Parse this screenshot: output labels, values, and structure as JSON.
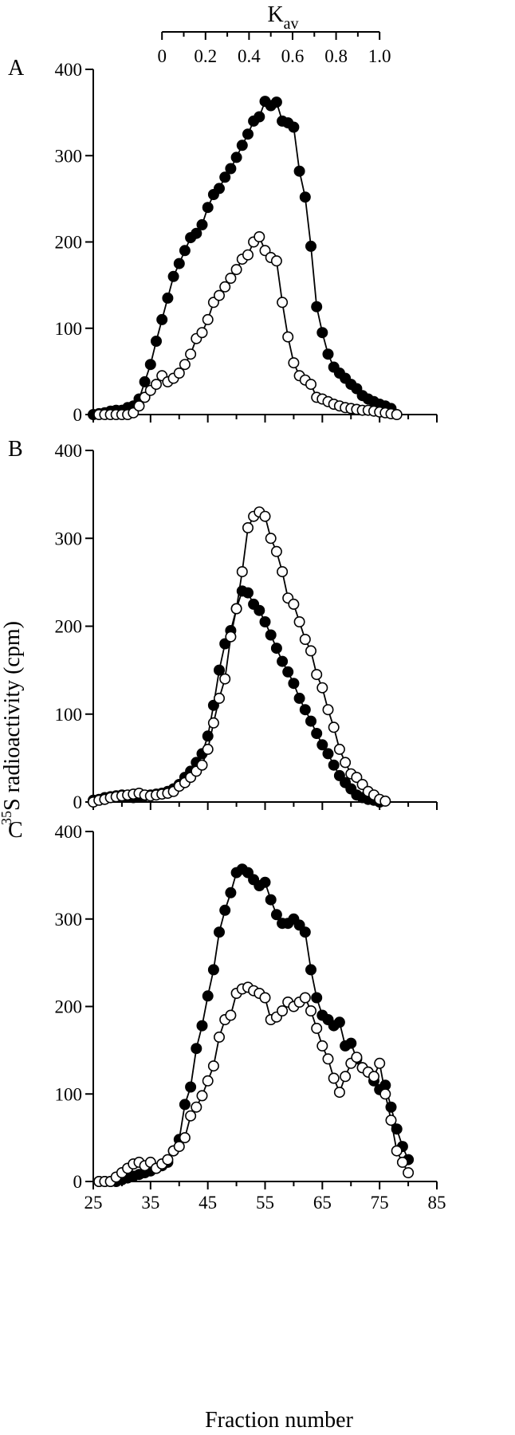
{
  "figure": {
    "top_axis_label_main": "K",
    "top_axis_label_sub": "av",
    "top_axis_ticks": [
      "0",
      "0.2",
      "0.4",
      "0.6",
      "0.8",
      "1.0"
    ],
    "top_axis_values": [
      0,
      0.2,
      0.4,
      0.6,
      0.8,
      1.0
    ],
    "y_axis_superscript": "35",
    "y_axis_label": "S radioactivity (cpm)",
    "x_axis_label": "Fraction number"
  },
  "chart_data": [
    {
      "type": "line",
      "panel": "A",
      "xlim": [
        25,
        85
      ],
      "ylim": [
        0,
        400
      ],
      "yticks": [
        0,
        100,
        200,
        300,
        400
      ],
      "xticks": [
        25,
        35,
        45,
        55,
        65,
        75,
        85
      ],
      "series": [
        {
          "style": "filled",
          "x": [
            25,
            26,
            27,
            28,
            29,
            30,
            31,
            32,
            33,
            34,
            35,
            36,
            37,
            38,
            39,
            40,
            41,
            42,
            43,
            44,
            45,
            46,
            47,
            48,
            49,
            50,
            51,
            52,
            53,
            54,
            55,
            56,
            57,
            58,
            59,
            60,
            61,
            62,
            63,
            64,
            65,
            66,
            67,
            68,
            69,
            70,
            71,
            72,
            73,
            74,
            75,
            76,
            77
          ],
          "y": [
            0,
            1,
            2,
            4,
            5,
            5,
            8,
            10,
            18,
            38,
            58,
            85,
            110,
            135,
            160,
            175,
            190,
            205,
            210,
            220,
            240,
            255,
            262,
            275,
            285,
            298,
            312,
            325,
            340,
            345,
            363,
            358,
            362,
            340,
            338,
            333,
            282,
            252,
            195,
            125,
            95,
            70,
            55,
            48,
            42,
            35,
            30,
            22,
            18,
            15,
            12,
            10,
            7
          ]
        },
        {
          "style": "open",
          "x": [
            26,
            27,
            28,
            29,
            30,
            31,
            32,
            33,
            34,
            35,
            36,
            37,
            38,
            39,
            40,
            41,
            42,
            43,
            44,
            45,
            46,
            47,
            48,
            49,
            50,
            51,
            52,
            53,
            54,
            55,
            56,
            57,
            58,
            59,
            60,
            61,
            62,
            63,
            64,
            65,
            66,
            67,
            68,
            69,
            70,
            71,
            72,
            73,
            74,
            75,
            76,
            77,
            78
          ],
          "y": [
            0,
            0,
            0,
            0,
            0,
            0,
            2,
            10,
            20,
            28,
            35,
            45,
            38,
            42,
            48,
            58,
            70,
            88,
            95,
            110,
            130,
            138,
            148,
            158,
            168,
            180,
            185,
            200,
            206,
            190,
            182,
            178,
            130,
            90,
            60,
            45,
            40,
            35,
            20,
            18,
            15,
            12,
            10,
            8,
            7,
            6,
            5,
            5,
            4,
            3,
            2,
            1,
            0
          ]
        }
      ]
    },
    {
      "type": "line",
      "panel": "B",
      "xlim": [
        25,
        85
      ],
      "ylim": [
        0,
        400
      ],
      "yticks": [
        0,
        100,
        200,
        300,
        400
      ],
      "xticks": [
        25,
        35,
        45,
        55,
        65,
        75,
        85
      ],
      "series": [
        {
          "style": "filled",
          "x": [
            25,
            26,
            27,
            28,
            29,
            30,
            31,
            32,
            33,
            34,
            35,
            36,
            37,
            38,
            39,
            40,
            41,
            42,
            43,
            44,
            45,
            46,
            47,
            48,
            49,
            50,
            51,
            52,
            53,
            54,
            55,
            56,
            57,
            58,
            59,
            60,
            61,
            62,
            63,
            64,
            65,
            66,
            67,
            68,
            69,
            70,
            71,
            72,
            73,
            74,
            75
          ],
          "y": [
            2,
            3,
            5,
            6,
            7,
            8,
            6,
            5,
            6,
            7,
            8,
            9,
            10,
            12,
            15,
            20,
            28,
            35,
            45,
            55,
            75,
            110,
            150,
            180,
            195,
            220,
            240,
            238,
            225,
            218,
            205,
            190,
            175,
            160,
            148,
            135,
            118,
            105,
            92,
            78,
            65,
            55,
            42,
            30,
            22,
            15,
            8,
            5,
            3,
            2,
            0
          ]
        },
        {
          "style": "open",
          "x": [
            25,
            26,
            27,
            28,
            29,
            30,
            31,
            32,
            33,
            34,
            35,
            36,
            37,
            38,
            39,
            40,
            41,
            42,
            43,
            44,
            45,
            46,
            47,
            48,
            49,
            50,
            51,
            52,
            53,
            54,
            55,
            56,
            57,
            58,
            59,
            60,
            61,
            62,
            63,
            64,
            65,
            66,
            67,
            68,
            69,
            70,
            71,
            72,
            73,
            74,
            75,
            76
          ],
          "y": [
            0,
            2,
            3,
            5,
            6,
            7,
            8,
            9,
            10,
            8,
            7,
            8,
            9,
            10,
            12,
            18,
            22,
            28,
            35,
            42,
            60,
            90,
            118,
            140,
            188,
            220,
            262,
            312,
            325,
            330,
            325,
            300,
            285,
            262,
            232,
            225,
            205,
            185,
            172,
            145,
            130,
            105,
            85,
            60,
            45,
            32,
            28,
            20,
            12,
            8,
            3,
            1
          ]
        }
      ]
    },
    {
      "type": "line",
      "panel": "C",
      "xlim": [
        25,
        85
      ],
      "ylim": [
        0,
        400
      ],
      "yticks": [
        0,
        100,
        200,
        300,
        400
      ],
      "xticks": [
        25,
        35,
        45,
        55,
        65,
        75,
        85
      ],
      "series": [
        {
          "style": "filled",
          "x": [
            26,
            27,
            28,
            29,
            30,
            31,
            32,
            33,
            34,
            35,
            36,
            37,
            38,
            39,
            40,
            41,
            42,
            43,
            44,
            45,
            46,
            47,
            48,
            49,
            50,
            51,
            52,
            53,
            54,
            55,
            56,
            57,
            58,
            59,
            60,
            61,
            62,
            63,
            64,
            65,
            66,
            67,
            68,
            69,
            70,
            71,
            72,
            73,
            74,
            75,
            76,
            77,
            78,
            79,
            80
          ],
          "y": [
            0,
            0,
            0,
            0,
            2,
            4,
            6,
            8,
            10,
            12,
            15,
            18,
            22,
            35,
            48,
            88,
            108,
            152,
            178,
            212,
            242,
            285,
            310,
            330,
            353,
            357,
            353,
            345,
            338,
            342,
            322,
            305,
            295,
            295,
            300,
            293,
            285,
            242,
            210,
            190,
            185,
            178,
            182,
            155,
            158,
            140,
            130,
            125,
            115,
            105,
            110,
            85,
            60,
            40,
            25
          ]
        },
        {
          "style": "open",
          "x": [
            26,
            27,
            28,
            29,
            30,
            31,
            32,
            33,
            34,
            35,
            36,
            37,
            38,
            39,
            40,
            41,
            42,
            43,
            44,
            45,
            46,
            47,
            48,
            49,
            50,
            51,
            52,
            53,
            54,
            55,
            56,
            57,
            58,
            59,
            60,
            61,
            62,
            63,
            64,
            65,
            66,
            67,
            68,
            69,
            70,
            71,
            72,
            73,
            74,
            75,
            76,
            77,
            78,
            79,
            80
          ],
          "y": [
            0,
            0,
            0,
            5,
            10,
            15,
            20,
            22,
            18,
            22,
            15,
            20,
            25,
            35,
            40,
            50,
            75,
            85,
            98,
            115,
            132,
            165,
            185,
            190,
            215,
            220,
            222,
            218,
            215,
            210,
            185,
            188,
            195,
            205,
            200,
            205,
            210,
            195,
            175,
            155,
            140,
            118,
            102,
            120,
            135,
            142,
            130,
            125,
            120,
            135,
            100,
            70,
            35,
            22,
            10
          ]
        }
      ]
    }
  ]
}
